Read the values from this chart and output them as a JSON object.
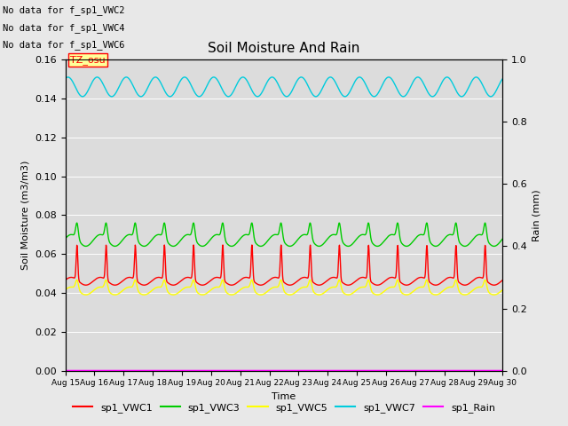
{
  "title": "Soil Moisture And Rain",
  "xlabel": "Time",
  "ylabel_left": "Soil Moisture (m3/m3)",
  "ylabel_right": "Rain (mm)",
  "ylim_left": [
    0.0,
    0.16
  ],
  "ylim_right": [
    0.0,
    1.0
  ],
  "yticks_left": [
    0.0,
    0.02,
    0.04,
    0.06,
    0.08,
    0.1,
    0.12,
    0.14,
    0.16
  ],
  "yticks_right": [
    0.0,
    0.2,
    0.4,
    0.6,
    0.8,
    1.0
  ],
  "x_labels": [
    "Aug 15",
    "Aug 16",
    "Aug 17",
    "Aug 18",
    "Aug 19",
    "Aug 20",
    "Aug 21",
    "Aug 22",
    "Aug 23",
    "Aug 24",
    "Aug 25",
    "Aug 26",
    "Aug 27",
    "Aug 28",
    "Aug 29",
    "Aug 30"
  ],
  "no_data_text": [
    "No data for f_sp1_VWC2",
    "No data for f_sp1_VWC4",
    "No data for f_sp1_VWC6"
  ],
  "tz_label": "TZ_osu",
  "colors": {
    "VWC1": "#ff0000",
    "VWC3": "#00cc00",
    "VWC5": "#ffff00",
    "VWC7": "#00ccdd",
    "Rain": "#ff00ff"
  },
  "legend_labels": [
    "sp1_VWC1",
    "sp1_VWC3",
    "sp1_VWC5",
    "sp1_VWC7",
    "sp1_Rain"
  ],
  "fig_bg_color": "#e8e8e8",
  "plot_bg_color": "#dcdcdc",
  "grid_color": "#ffffff"
}
